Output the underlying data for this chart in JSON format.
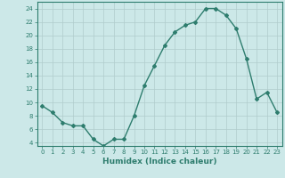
{
  "x": [
    0,
    1,
    2,
    3,
    4,
    5,
    6,
    7,
    8,
    9,
    10,
    11,
    12,
    13,
    14,
    15,
    16,
    17,
    18,
    19,
    20,
    21,
    22,
    23
  ],
  "y": [
    9.5,
    8.5,
    7.0,
    6.5,
    6.5,
    4.5,
    3.5,
    4.5,
    4.5,
    8.0,
    12.5,
    15.5,
    18.5,
    20.5,
    21.5,
    22.0,
    24.0,
    24.0,
    23.0,
    21.0,
    16.5,
    10.5,
    11.5,
    8.5
  ],
  "line_color": "#2e7d6e",
  "marker": "D",
  "markersize": 2,
  "linewidth": 1.0,
  "bgcolor": "#cce8e8",
  "grid_color": "#b0cccc",
  "xlabel": "Humidex (Indice chaleur)",
  "ylabel": "",
  "xlim": [
    -0.5,
    23.5
  ],
  "ylim": [
    3.5,
    25.0
  ],
  "yticks": [
    4,
    6,
    8,
    10,
    12,
    14,
    16,
    18,
    20,
    22,
    24
  ],
  "xticks": [
    0,
    1,
    2,
    3,
    4,
    5,
    6,
    7,
    8,
    9,
    10,
    11,
    12,
    13,
    14,
    15,
    16,
    17,
    18,
    19,
    20,
    21,
    22,
    23
  ],
  "tick_color": "#2e7d6e",
  "axis_color": "#2e7d6e",
  "xlabel_fontsize": 6.5,
  "tick_fontsize": 5.0
}
